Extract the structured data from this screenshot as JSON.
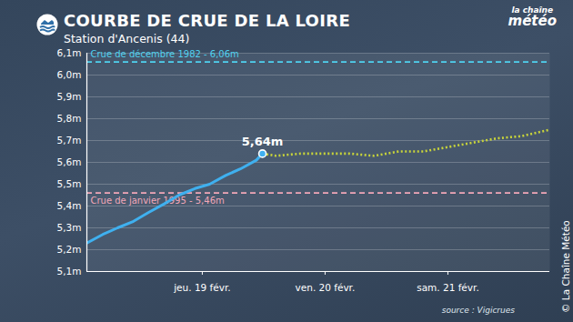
{
  "chart_data": {
    "type": "line",
    "title": "COURBE DE CRUE DE LA LOIRE",
    "subtitle": "Station d'Ancenis (44)",
    "logo": [
      "la chaîne",
      "météo"
    ],
    "source": "source : Vigicrues",
    "credit": "© La Chaîne Météo",
    "x": [
      18.06,
      18.19,
      18.31,
      18.44,
      18.56,
      18.69,
      18.81,
      18.94,
      19.06,
      19.19,
      19.31,
      19.44,
      19.49,
      19.6,
      19.8,
      20.0,
      20.2,
      20.4,
      20.6,
      20.8,
      21.0,
      21.2,
      21.4,
      21.6,
      21.83
    ],
    "series": [
      {
        "color": "#3fb0ef",
        "line_style": "solid",
        "values": [
          5.23,
          5.27,
          5.3,
          5.33,
          5.37,
          5.41,
          5.45,
          5.48,
          5.5,
          5.54,
          5.57,
          5.61,
          5.64,
          null,
          null,
          null,
          null,
          null,
          null,
          null,
          null,
          null,
          null,
          null,
          null
        ]
      },
      {
        "color": "#c8d43a",
        "line_style": "dotted",
        "values": [
          null,
          null,
          null,
          null,
          null,
          null,
          null,
          null,
          null,
          null,
          null,
          null,
          5.64,
          5.63,
          5.64,
          5.64,
          5.64,
          5.63,
          5.65,
          5.65,
          5.67,
          5.69,
          5.71,
          5.72,
          5.75
        ]
      }
    ],
    "annotations": [
      {
        "x": 19.49,
        "y": 5.64,
        "label": "5,64m"
      }
    ],
    "reference_lines": [
      {
        "value": 6.06,
        "label": "Crue de décembre 1982 - 6,06m",
        "color": "#4fd2f0"
      },
      {
        "value": 5.46,
        "label": "Crue de janvier 1995 - 5,46m",
        "color": "#f2a7b8"
      }
    ],
    "xlim": [
      18.06,
      21.83
    ],
    "xticks": [
      {
        "value": 19,
        "label": "jeu. 19 févr."
      },
      {
        "value": 20,
        "label": "ven. 20 févr."
      },
      {
        "value": 21,
        "label": "sam. 21 févr."
      }
    ],
    "ylim": [
      5.1,
      6.1
    ],
    "yticks": [
      {
        "value": 5.1,
        "label": "5,1m"
      },
      {
        "value": 5.2,
        "label": "5,2m"
      },
      {
        "value": 5.3,
        "label": "5,3m"
      },
      {
        "value": 5.4,
        "label": "5,4m"
      },
      {
        "value": 5.5,
        "label": "5,5m"
      },
      {
        "value": 5.6,
        "label": "5,6m"
      },
      {
        "value": 5.7,
        "label": "5,7m"
      },
      {
        "value": 5.8,
        "label": "5,8m"
      },
      {
        "value": 5.9,
        "label": "5,9m"
      },
      {
        "value": 6.0,
        "label": "6,0m"
      },
      {
        "value": 6.1,
        "label": "6,1m"
      }
    ],
    "grid": true
  }
}
